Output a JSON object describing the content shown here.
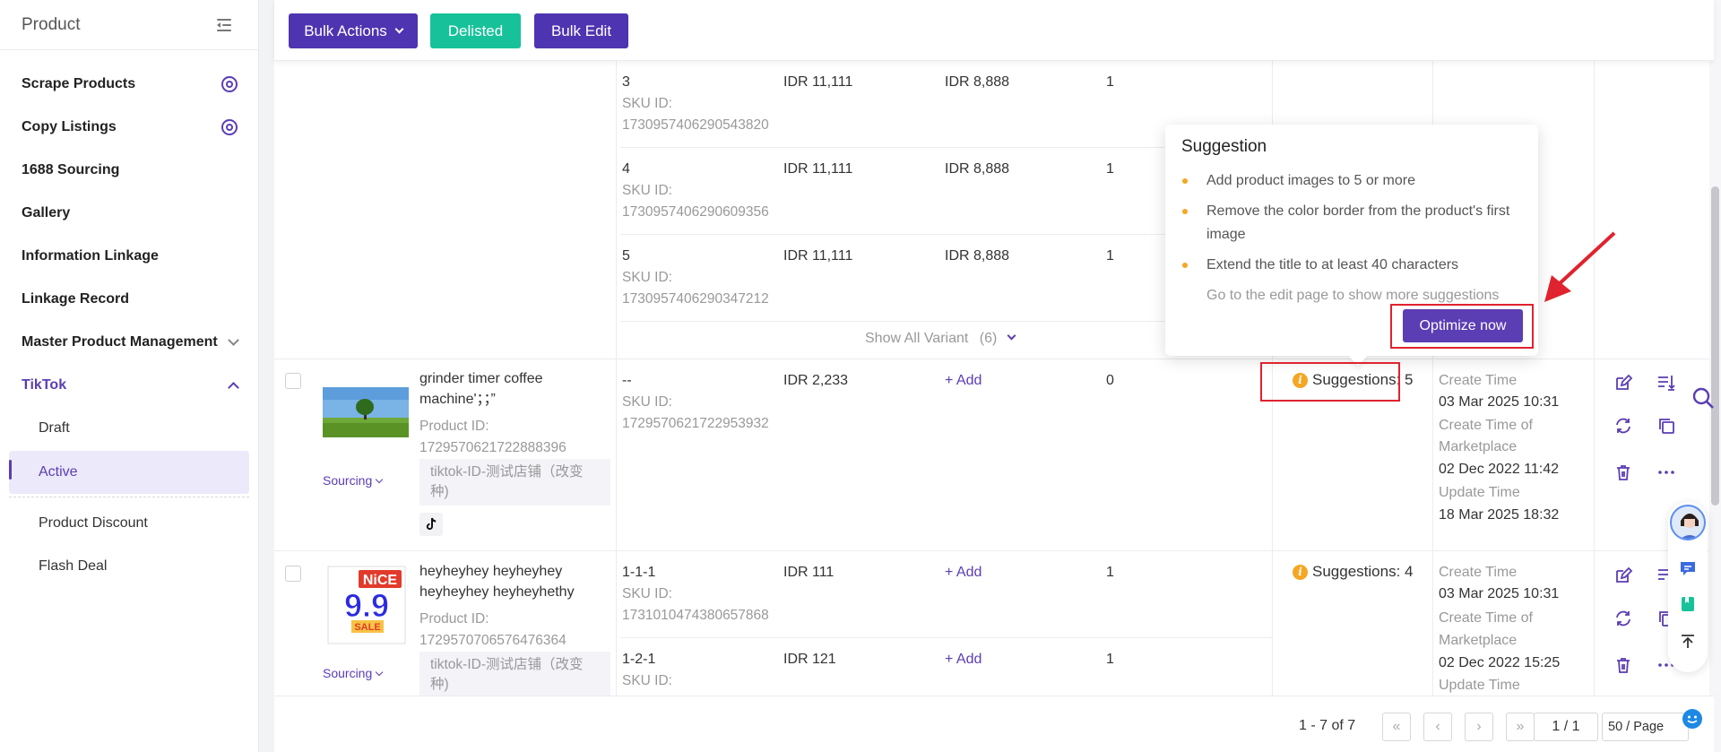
{
  "sidebar": {
    "title": "Product",
    "items": [
      {
        "label": "Scrape Products"
      },
      {
        "label": "Copy Listings"
      },
      {
        "label": "1688 Sourcing"
      },
      {
        "label": "Gallery"
      },
      {
        "label": "Information Linkage"
      },
      {
        "label": "Linkage Record"
      },
      {
        "label": "Master Product Management"
      },
      {
        "label": "TikTok"
      },
      {
        "label": "Draft"
      },
      {
        "label": "Active"
      },
      {
        "label": "Product Discount"
      },
      {
        "label": "Flash Deal"
      }
    ]
  },
  "toolbar": {
    "bulk_actions": "Bulk Actions",
    "delisted": "Delisted",
    "bulk_edit": "Bulk Edit"
  },
  "variants_top": [
    {
      "name": "3",
      "sku_label": "SKU ID:",
      "sku": "1730957406290543820",
      "price": "IDR 11,111",
      "sale": "IDR 8,888",
      "stock": "1"
    },
    {
      "name": "4",
      "sku_label": "SKU ID:",
      "sku": "1730957406290609356",
      "price": "IDR 11,111",
      "sale": "IDR 8,888",
      "stock": "1"
    },
    {
      "name": "5",
      "sku_label": "SKU ID:",
      "sku": "1730957406290347212",
      "price": "IDR 11,111",
      "sale": "IDR 8,888",
      "stock": "1"
    }
  ],
  "show_all": {
    "label": "Show All Variant",
    "count": "(6)"
  },
  "products": [
    {
      "title": "grinder timer coffee machine'；；”",
      "product_id_label": "Product ID:",
      "product_id": "1729570621722888396",
      "shop": "tiktok-ID-测试店铺（改变种)",
      "sourcing": "Sourcing",
      "variant": {
        "name": "--",
        "sku_label": "SKU ID:",
        "sku": "1729570621722953932",
        "price": "IDR 2,233",
        "sale": "+ Add",
        "stock": "0"
      },
      "suggestions": "Suggestions: 5",
      "times": [
        "Create Time",
        "03 Mar 2025 10:31",
        "Create Time of",
        "Marketplace",
        "02 Dec 2022 11:42",
        "Update Time",
        "18 Mar 2025 18:32"
      ]
    },
    {
      "title": "heyheyhey heyheyhey heyheyhey heyheyhethy",
      "product_id_label": "Product ID:",
      "product_id": "1729570706576476364",
      "shop": "tiktok-ID-测试店铺（改变种)",
      "sourcing": "Sourcing",
      "thumb_text": {
        "top": "NiCE",
        "mid": "9.9",
        "sale": "SALE"
      },
      "variants": [
        {
          "name": "1-1-1",
          "sku_label": "SKU ID:",
          "sku": "1731010474380657868",
          "price": "IDR 111",
          "sale": "+ Add",
          "stock": "1"
        },
        {
          "name": "1-2-1",
          "sku_label": "SKU ID:",
          "price": "IDR 121",
          "sale": "+ Add",
          "stock": "1"
        }
      ],
      "suggestions": "Suggestions: 4",
      "times": [
        "Create Time",
        "03 Mar 2025 10:31",
        "Create Time of",
        "Marketplace",
        "02 Dec 2022 15:25",
        "Update Time"
      ]
    }
  ],
  "popover": {
    "title": "Suggestion",
    "items": [
      "Add product images to 5 or more",
      "Remove the color border from the product's first image",
      "Extend the title to at least 40 characters"
    ],
    "more": "Go to the edit page to show more suggestions",
    "button": "Optimize now"
  },
  "pagination": {
    "range": "1 - 7 of 7",
    "page": "1 / 1",
    "page_size": "50 / Page"
  },
  "colors": {
    "accent": "#5b3db4",
    "success": "#17c29a",
    "warning": "#f5a623",
    "highlight": "#e0232e"
  }
}
